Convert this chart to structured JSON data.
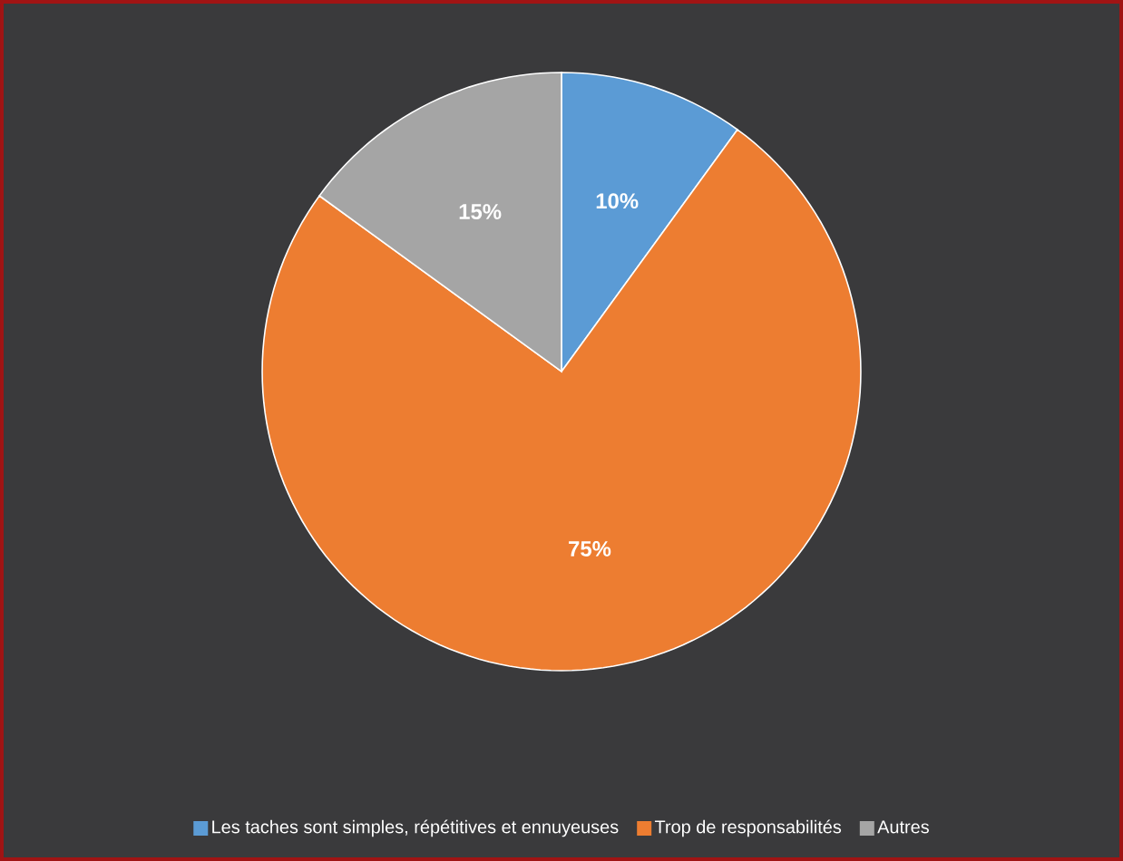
{
  "chart_data": {
    "type": "pie",
    "categories": [
      "Les taches sont simples, répétitives et ennuyeuses",
      "Trop de responsabilités",
      "Autres"
    ],
    "values": [
      10,
      75,
      15
    ],
    "colors": [
      "#5b9bd5",
      "#ed7d31",
      "#a5a5a5"
    ],
    "value_labels": [
      "10%",
      "75%",
      "15%"
    ],
    "legend": "bottom"
  }
}
